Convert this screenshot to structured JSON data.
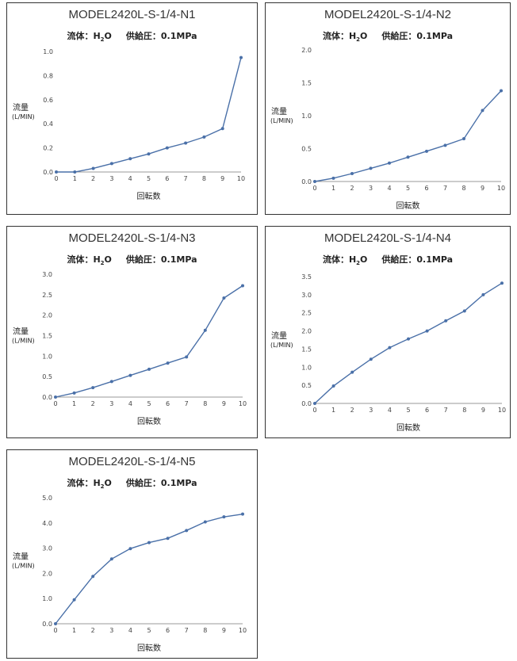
{
  "chart_data": [
    {
      "type": "line",
      "title": "MODEL2420L-S-1/4-N1",
      "subtitle": {
        "fluid_label": "流体：",
        "fluid": "H",
        "fluid_sub": "2",
        "fluid_end": "O",
        "pressure": "供給圧：0.1MPa"
      },
      "xlabel": "回転数",
      "ylabel": "流量",
      "yunit": "(L/MIN)",
      "xlim": [
        0,
        10
      ],
      "ylim": [
        0,
        1.0
      ],
      "xticks": [
        "0",
        "1",
        "2",
        "3",
        "4",
        "5",
        "6",
        "7",
        "8",
        "9",
        "10"
      ],
      "yticks": [
        "0.0",
        "0.2",
        "0.4",
        "0.6",
        "0.8",
        "1.0"
      ],
      "x": [
        0,
        1,
        2,
        3,
        4,
        5,
        6,
        7,
        8,
        9,
        10
      ],
      "values": [
        0.0,
        0.0,
        0.03,
        0.07,
        0.11,
        0.15,
        0.2,
        0.24,
        0.29,
        0.36,
        0.95
      ],
      "grid": false,
      "color": "#4a70a8"
    },
    {
      "type": "line",
      "title": "MODEL2420L-S-1/4-N2",
      "subtitle": {
        "fluid_label": "流体：",
        "fluid": "H",
        "fluid_sub": "2",
        "fluid_end": "O",
        "pressure": "供給圧：0.1MPa"
      },
      "xlabel": "回転数",
      "ylabel": "流量",
      "yunit": "(L/MIN)",
      "xlim": [
        0,
        10
      ],
      "ylim": [
        0,
        2.0
      ],
      "xticks": [
        "0",
        "1",
        "2",
        "3",
        "4",
        "5",
        "6",
        "7",
        "8",
        "9",
        "10"
      ],
      "yticks": [
        "0.0",
        "0.5",
        "1.0",
        "1.5",
        "2.0"
      ],
      "x": [
        0,
        1,
        2,
        3,
        4,
        5,
        6,
        7,
        8,
        9,
        10
      ],
      "values": [
        0.0,
        0.05,
        0.12,
        0.2,
        0.28,
        0.37,
        0.46,
        0.55,
        0.65,
        1.08,
        1.38
      ],
      "grid": false,
      "color": "#4a70a8"
    },
    {
      "type": "line",
      "title": "MODEL2420L-S-1/4-N3",
      "subtitle": {
        "fluid_label": "流体：",
        "fluid": "H",
        "fluid_sub": "2",
        "fluid_end": "O",
        "pressure": "供給圧：0.1MPa"
      },
      "xlabel": "回転数",
      "ylabel": "流量",
      "yunit": "(L/MIN)",
      "xlim": [
        0,
        10
      ],
      "ylim": [
        0,
        3.0
      ],
      "xticks": [
        "0",
        "1",
        "2",
        "3",
        "4",
        "5",
        "6",
        "7",
        "8",
        "9",
        "10"
      ],
      "yticks": [
        "0.0",
        "0.5",
        "1.0",
        "1.5",
        "2.0",
        "2.5",
        "3.0"
      ],
      "x": [
        0,
        1,
        2,
        3,
        4,
        5,
        6,
        7,
        8,
        9,
        10
      ],
      "values": [
        0.0,
        0.1,
        0.23,
        0.38,
        0.53,
        0.68,
        0.83,
        0.98,
        1.63,
        2.42,
        2.72
      ],
      "grid": false,
      "color": "#4a70a8"
    },
    {
      "type": "line",
      "title": "MODEL2420L-S-1/4-N4",
      "subtitle": {
        "fluid_label": "流体：",
        "fluid": "H",
        "fluid_sub": "2",
        "fluid_end": "O",
        "pressure": "供給圧：0.1MPa"
      },
      "xlabel": "回転数",
      "ylabel": "流量",
      "yunit": "(L/MIN)",
      "xlim": [
        0,
        10
      ],
      "ylim": [
        0,
        3.5
      ],
      "xticks": [
        "0",
        "1",
        "2",
        "3",
        "4",
        "5",
        "6",
        "7",
        "8",
        "9",
        "10"
      ],
      "yticks": [
        "0.0",
        "0.5",
        "1.0",
        "1.5",
        "2.0",
        "2.5",
        "3.0",
        "3.5"
      ],
      "x": [
        0,
        1,
        2,
        3,
        4,
        5,
        6,
        7,
        8,
        9,
        10
      ],
      "values": [
        0.0,
        0.48,
        0.86,
        1.22,
        1.54,
        1.78,
        2.0,
        2.28,
        2.55,
        3.0,
        3.32
      ],
      "grid": false,
      "color": "#4a70a8"
    },
    {
      "type": "line",
      "title": "MODEL2420L-S-1/4-N5",
      "subtitle": {
        "fluid_label": "流体：",
        "fluid": "H",
        "fluid_sub": "2",
        "fluid_end": "O",
        "pressure": "供給圧：0.1MPa"
      },
      "xlabel": "回転数",
      "ylabel": "流量",
      "yunit": "(L/MIN)",
      "xlim": [
        0,
        10
      ],
      "ylim": [
        0,
        5.0
      ],
      "xticks": [
        "0",
        "1",
        "2",
        "3",
        "4",
        "5",
        "6",
        "7",
        "8",
        "9",
        "10"
      ],
      "yticks": [
        "0.0",
        "1.0",
        "2.0",
        "3.0",
        "4.0",
        "5.0"
      ],
      "x": [
        0,
        1,
        2,
        3,
        4,
        5,
        6,
        7,
        8,
        9,
        10
      ],
      "values": [
        0.0,
        0.95,
        1.88,
        2.57,
        2.98,
        3.22,
        3.39,
        3.7,
        4.04,
        4.24,
        4.35
      ],
      "grid": false,
      "color": "#4a70a8"
    }
  ]
}
